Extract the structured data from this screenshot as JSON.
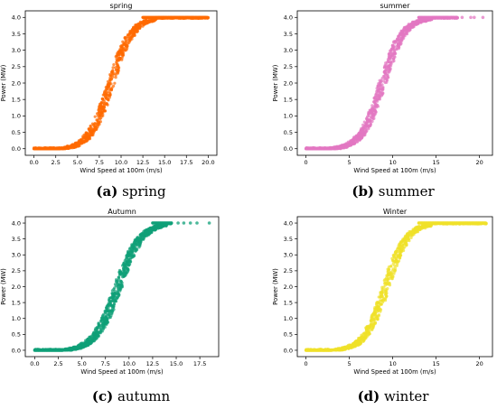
{
  "chart_data": [
    {
      "type": "scatter",
      "title": "spring",
      "xlabel": "Wind Speed at 100m (m/s)",
      "ylabel": "Power (MW)",
      "xlim": [
        -1,
        21
      ],
      "ylim": [
        -0.2,
        4.2
      ],
      "xticks": [
        0.0,
        2.5,
        5.0,
        7.5,
        10.0,
        12.5,
        15.0,
        17.5,
        20.0
      ],
      "xtick_labels": [
        "0.0",
        "2.5",
        "5.0",
        "7.5",
        "10.0",
        "12.5",
        "15.0",
        "17.5",
        "20.0"
      ],
      "yticks": [
        0.0,
        0.5,
        1.0,
        1.5,
        2.0,
        2.5,
        3.0,
        3.5,
        4.0
      ],
      "ytick_labels": [
        "0.0",
        "0.5",
        "1.0",
        "1.5",
        "2.0",
        "2.5",
        "3.0",
        "3.5",
        "4.0"
      ],
      "color": "#ff6a00",
      "grid": false,
      "curve": {
        "cut_in": 3.0,
        "midpoint": 8.8,
        "rated": 12.5,
        "max_power": 4.0,
        "x_max": 20.0
      },
      "series": [
        {
          "x": [
            0,
            1,
            2,
            3,
            4,
            5,
            6,
            7,
            8,
            9,
            10,
            11,
            12,
            13,
            14,
            15,
            16,
            17,
            18,
            19,
            20
          ],
          "y": [
            0.0,
            0.0,
            0.0,
            0.05,
            0.2,
            0.5,
            0.9,
            1.45,
            2.1,
            2.75,
            3.35,
            3.8,
            3.97,
            4.0,
            4.0,
            4.0,
            4.0,
            4.0,
            4.0,
            4.0,
            4.0
          ]
        }
      ]
    },
    {
      "type": "scatter",
      "title": "summer",
      "xlabel": "Wind Speed at 100m (m/s)",
      "ylabel": "Power (MW)",
      "xlim": [
        -1,
        21.5
      ],
      "ylim": [
        -0.2,
        4.2
      ],
      "xticks": [
        0,
        5,
        10,
        15,
        20
      ],
      "xtick_labels": [
        "0",
        "5",
        "10",
        "15",
        "20"
      ],
      "yticks": [
        0.0,
        0.5,
        1.0,
        1.5,
        2.0,
        2.5,
        3.0,
        3.5,
        4.0
      ],
      "ytick_labels": [
        "0.0",
        "0.5",
        "1.0",
        "1.5",
        "2.0",
        "2.5",
        "3.0",
        "3.5",
        "4.0"
      ],
      "color": "#e377c2",
      "grid": false,
      "curve": {
        "cut_in": 3.0,
        "midpoint": 8.8,
        "rated": 13.0,
        "max_power": 4.0,
        "x_max": 17.5
      },
      "outliers_x": [
        18.0,
        19.0,
        19.4,
        20.4
      ],
      "series": [
        {
          "x": [
            0,
            1,
            2,
            3,
            4,
            5,
            6,
            7,
            8,
            9,
            10,
            11,
            12,
            13,
            14,
            15,
            16,
            17
          ],
          "y": [
            0.0,
            0.0,
            0.0,
            0.05,
            0.2,
            0.5,
            0.9,
            1.45,
            2.1,
            2.75,
            3.35,
            3.8,
            3.97,
            4.0,
            4.0,
            4.0,
            4.0,
            4.0
          ]
        }
      ]
    },
    {
      "type": "scatter",
      "title": "Autumn",
      "xlabel": "Wind Speed at 100m (m/s)",
      "ylabel": "Power (MW)",
      "xlim": [
        -1,
        19.5
      ],
      "ylim": [
        -0.2,
        4.2
      ],
      "xticks": [
        0.0,
        2.5,
        5.0,
        7.5,
        10.0,
        12.5,
        15.0,
        17.5
      ],
      "xtick_labels": [
        "0.0",
        "2.5",
        "5.0",
        "7.5",
        "10.0",
        "12.5",
        "15.0",
        "17.5"
      ],
      "yticks": [
        0.0,
        0.5,
        1.0,
        1.5,
        2.0,
        2.5,
        3.0,
        3.5,
        4.0
      ],
      "ytick_labels": [
        "0.0",
        "0.5",
        "1.0",
        "1.5",
        "2.0",
        "2.5",
        "3.0",
        "3.5",
        "4.0"
      ],
      "color": "#0fa078",
      "grid": false,
      "curve": {
        "cut_in": 3.0,
        "midpoint": 8.8,
        "rated": 12.5,
        "max_power": 4.0,
        "x_max": 14.5
      },
      "outliers_x": [
        15.2,
        15.8,
        16.5,
        17.2,
        18.5
      ],
      "series": [
        {
          "x": [
            0,
            1,
            2,
            3,
            4,
            5,
            6,
            7,
            8,
            9,
            10,
            11,
            12,
            13,
            14
          ],
          "y": [
            0.0,
            0.0,
            0.0,
            0.05,
            0.2,
            0.5,
            0.9,
            1.45,
            2.1,
            2.75,
            3.35,
            3.8,
            3.97,
            4.0,
            4.0
          ]
        }
      ]
    },
    {
      "type": "scatter",
      "title": "Winter",
      "xlabel": "Wind Speed at 100m (m/s)",
      "ylabel": "Power (MW)",
      "xlim": [
        -1,
        21.5
      ],
      "ylim": [
        -0.2,
        4.2
      ],
      "xticks": [
        0,
        5,
        10,
        15,
        20
      ],
      "xtick_labels": [
        "0",
        "5",
        "10",
        "15",
        "20"
      ],
      "yticks": [
        0.0,
        0.5,
        1.0,
        1.5,
        2.0,
        2.5,
        3.0,
        3.5,
        4.0
      ],
      "ytick_labels": [
        "0.0",
        "0.5",
        "1.0",
        "1.5",
        "2.0",
        "2.5",
        "3.0",
        "3.5",
        "4.0"
      ],
      "color": "#f0e12a",
      "grid": false,
      "curve": {
        "cut_in": 3.0,
        "midpoint": 9.2,
        "rated": 13.0,
        "max_power": 4.0,
        "x_max": 20.8
      },
      "series": [
        {
          "x": [
            0,
            1,
            2,
            3,
            4,
            5,
            6,
            7,
            8,
            9,
            10,
            11,
            12,
            13,
            14,
            15,
            16,
            17,
            18,
            19,
            20
          ],
          "y": [
            0.0,
            0.0,
            0.0,
            0.04,
            0.18,
            0.45,
            0.85,
            1.35,
            1.95,
            2.6,
            3.2,
            3.7,
            3.95,
            4.0,
            4.0,
            4.0,
            4.0,
            4.0,
            4.0,
            4.0,
            4.0
          ]
        }
      ]
    }
  ],
  "captions": [
    {
      "letter": "(a)",
      "text": " spring"
    },
    {
      "letter": "(b)",
      "text": " summer"
    },
    {
      "letter": "(c)",
      "text": " autumn"
    },
    {
      "letter": "(d)",
      "text": " winter"
    }
  ]
}
